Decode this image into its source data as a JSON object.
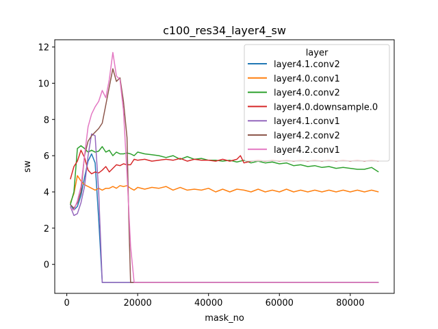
{
  "chart_data": {
    "type": "line",
    "title": "c100_res34_layer4_sw",
    "xlabel": "mask_no",
    "ylabel": "sw",
    "xlim": [
      -3400,
      92400
    ],
    "ylim": [
      -1.6,
      12.4
    ],
    "xticks": [
      0,
      20000,
      40000,
      60000,
      80000
    ],
    "xtick_labels": [
      "0",
      "20000",
      "40000",
      "60000",
      "80000"
    ],
    "yticks": [
      0,
      2,
      4,
      6,
      8,
      10,
      12
    ],
    "ytick_labels": [
      "0",
      "2",
      "4",
      "6",
      "8",
      "10",
      "12"
    ],
    "grid": false,
    "legend": {
      "title": "layer",
      "placement": "upper right"
    },
    "series": [
      {
        "name": "layer4.1.conv2",
        "color": "#1f77b4",
        "points": [
          [
            1000,
            3.3
          ],
          [
            2000,
            3.0
          ],
          [
            3000,
            3.2
          ],
          [
            4000,
            3.8
          ],
          [
            5000,
            4.8
          ],
          [
            6000,
            5.7
          ],
          [
            7000,
            6.1
          ],
          [
            8000,
            5.6
          ],
          [
            9000,
            2.5
          ],
          [
            10000,
            -1.0
          ],
          [
            88000,
            -1.0
          ]
        ]
      },
      {
        "name": "layer4.0.conv1",
        "color": "#ff7f0e",
        "points": [
          [
            1000,
            3.4
          ],
          [
            2000,
            3.9
          ],
          [
            3000,
            4.9
          ],
          [
            4000,
            4.6
          ],
          [
            5000,
            4.4
          ],
          [
            6000,
            4.3
          ],
          [
            7000,
            4.2
          ],
          [
            8000,
            4.1
          ],
          [
            9000,
            4.2
          ],
          [
            10000,
            4.1
          ],
          [
            11000,
            4.2
          ],
          [
            12000,
            4.2
          ],
          [
            13000,
            4.3
          ],
          [
            14000,
            4.2
          ],
          [
            15000,
            4.35
          ],
          [
            16000,
            4.3
          ],
          [
            17000,
            4.35
          ],
          [
            18000,
            4.2
          ],
          [
            19000,
            4.1
          ],
          [
            20000,
            4.25
          ],
          [
            22000,
            4.15
          ],
          [
            24000,
            4.25
          ],
          [
            26000,
            4.2
          ],
          [
            28000,
            4.3
          ],
          [
            30000,
            4.1
          ],
          [
            32000,
            4.25
          ],
          [
            34000,
            4.1
          ],
          [
            36000,
            4.15
          ],
          [
            38000,
            4.1
          ],
          [
            40000,
            4.2
          ],
          [
            42000,
            4.0
          ],
          [
            44000,
            4.15
          ],
          [
            46000,
            4.0
          ],
          [
            48000,
            4.15
          ],
          [
            50000,
            4.1
          ],
          [
            52000,
            4.0
          ],
          [
            54000,
            4.15
          ],
          [
            56000,
            4.0
          ],
          [
            58000,
            4.1
          ],
          [
            60000,
            4.0
          ],
          [
            62000,
            4.15
          ],
          [
            64000,
            4.0
          ],
          [
            66000,
            4.1
          ],
          [
            68000,
            4.0
          ],
          [
            70000,
            4.1
          ],
          [
            72000,
            4.0
          ],
          [
            74000,
            4.1
          ],
          [
            76000,
            4.0
          ],
          [
            78000,
            4.1
          ],
          [
            80000,
            4.0
          ],
          [
            82000,
            4.1
          ],
          [
            84000,
            4.0
          ],
          [
            86000,
            4.1
          ],
          [
            88000,
            4.0
          ]
        ]
      },
      {
        "name": "layer4.0.conv2",
        "color": "#2ca02c",
        "points": [
          [
            1000,
            3.3
          ],
          [
            2000,
            4.0
          ],
          [
            3000,
            6.4
          ],
          [
            4000,
            6.55
          ],
          [
            5000,
            6.4
          ],
          [
            6000,
            6.2
          ],
          [
            7000,
            6.3
          ],
          [
            8000,
            6.2
          ],
          [
            9000,
            6.25
          ],
          [
            10000,
            6.5
          ],
          [
            11000,
            6.2
          ],
          [
            12000,
            6.3
          ],
          [
            13000,
            6.0
          ],
          [
            14000,
            6.2
          ],
          [
            15000,
            6.1
          ],
          [
            16000,
            6.1
          ],
          [
            17000,
            6.15
          ],
          [
            18000,
            6.1
          ],
          [
            19000,
            6.0
          ],
          [
            20000,
            6.2
          ],
          [
            22000,
            6.1
          ],
          [
            24000,
            6.05
          ],
          [
            26000,
            6.0
          ],
          [
            28000,
            5.9
          ],
          [
            30000,
            6.0
          ],
          [
            32000,
            5.8
          ],
          [
            34000,
            5.95
          ],
          [
            36000,
            5.8
          ],
          [
            38000,
            5.85
          ],
          [
            40000,
            5.75
          ],
          [
            42000,
            5.75
          ],
          [
            44000,
            5.7
          ],
          [
            46000,
            5.75
          ],
          [
            48000,
            5.65
          ],
          [
            50000,
            5.75
          ],
          [
            52000,
            5.6
          ],
          [
            54000,
            5.7
          ],
          [
            56000,
            5.6
          ],
          [
            58000,
            5.65
          ],
          [
            60000,
            5.55
          ],
          [
            62000,
            5.6
          ],
          [
            64000,
            5.45
          ],
          [
            66000,
            5.5
          ],
          [
            68000,
            5.4
          ],
          [
            70000,
            5.45
          ],
          [
            72000,
            5.35
          ],
          [
            74000,
            5.4
          ],
          [
            76000,
            5.3
          ],
          [
            78000,
            5.35
          ],
          [
            80000,
            5.3
          ],
          [
            82000,
            5.25
          ],
          [
            84000,
            5.25
          ],
          [
            86000,
            5.35
          ],
          [
            88000,
            5.1
          ]
        ]
      },
      {
        "name": "layer4.0.downsample.0",
        "color": "#d62728",
        "points": [
          [
            1000,
            4.7
          ],
          [
            2000,
            5.4
          ],
          [
            3000,
            5.7
          ],
          [
            4000,
            6.3
          ],
          [
            5000,
            5.9
          ],
          [
            6000,
            5.2
          ],
          [
            7000,
            5.0
          ],
          [
            8000,
            5.1
          ],
          [
            9000,
            5.05
          ],
          [
            10000,
            5.2
          ],
          [
            11000,
            5.4
          ],
          [
            12000,
            5.1
          ],
          [
            13000,
            5.3
          ],
          [
            14000,
            5.5
          ],
          [
            15000,
            5.45
          ],
          [
            16000,
            5.55
          ],
          [
            17000,
            5.5
          ],
          [
            18000,
            5.5
          ],
          [
            19000,
            5.8
          ],
          [
            20000,
            5.75
          ],
          [
            22000,
            5.8
          ],
          [
            24000,
            5.7
          ],
          [
            26000,
            5.75
          ],
          [
            28000,
            5.8
          ],
          [
            30000,
            5.75
          ],
          [
            32000,
            5.85
          ],
          [
            34000,
            5.7
          ],
          [
            36000,
            5.8
          ],
          [
            38000,
            5.75
          ],
          [
            40000,
            5.75
          ],
          [
            42000,
            5.7
          ],
          [
            44000,
            5.8
          ],
          [
            46000,
            5.7
          ],
          [
            48000,
            5.8
          ],
          [
            49000,
            6.0
          ],
          [
            50000,
            5.6
          ],
          [
            52000,
            5.7
          ],
          [
            54000,
            5.75
          ],
          [
            56000,
            5.7
          ],
          [
            58000,
            5.75
          ],
          [
            60000,
            5.7
          ],
          [
            62000,
            5.75
          ],
          [
            64000,
            5.7
          ],
          [
            66000,
            5.75
          ],
          [
            68000,
            5.7
          ],
          [
            70000,
            5.75
          ],
          [
            72000,
            5.7
          ],
          [
            74000,
            5.75
          ],
          [
            76000,
            5.7
          ],
          [
            78000,
            5.75
          ],
          [
            80000,
            5.7
          ],
          [
            82000,
            5.75
          ],
          [
            84000,
            5.7
          ],
          [
            86000,
            5.75
          ],
          [
            88000,
            5.7
          ]
        ]
      },
      {
        "name": "layer4.1.conv1",
        "color": "#9467bd",
        "points": [
          [
            1000,
            3.2
          ],
          [
            2000,
            2.7
          ],
          [
            3000,
            2.8
          ],
          [
            4000,
            3.4
          ],
          [
            5000,
            4.3
          ],
          [
            6000,
            6.0
          ],
          [
            7000,
            7.2
          ],
          [
            8000,
            7.1
          ],
          [
            9000,
            4.0
          ],
          [
            10000,
            -1.0
          ],
          [
            88000,
            -1.0
          ]
        ]
      },
      {
        "name": "layer4.2.conv2",
        "color": "#8c564b",
        "points": [
          [
            1000,
            3.3
          ],
          [
            2000,
            3.1
          ],
          [
            3000,
            3.4
          ],
          [
            4000,
            4.0
          ],
          [
            5000,
            6.0
          ],
          [
            6000,
            6.8
          ],
          [
            7000,
            7.1
          ],
          [
            8000,
            7.3
          ],
          [
            9000,
            7.5
          ],
          [
            10000,
            7.8
          ],
          [
            11000,
            8.8
          ],
          [
            12000,
            9.8
          ],
          [
            13000,
            10.8
          ],
          [
            14000,
            10.1
          ],
          [
            15000,
            10.3
          ],
          [
            16000,
            9.0
          ],
          [
            17000,
            7.0
          ],
          [
            17500,
            2.5
          ],
          [
            18000,
            -1.0
          ],
          [
            88000,
            -1.0
          ]
        ]
      },
      {
        "name": "layer4.2.conv1",
        "color": "#e377c2",
        "points": [
          [
            1000,
            3.1
          ],
          [
            2000,
            3.0
          ],
          [
            3000,
            3.5
          ],
          [
            4000,
            4.3
          ],
          [
            5000,
            6.0
          ],
          [
            6000,
            7.6
          ],
          [
            7000,
            8.3
          ],
          [
            8000,
            8.7
          ],
          [
            9000,
            9.0
          ],
          [
            10000,
            9.6
          ],
          [
            11000,
            9.2
          ],
          [
            12000,
            10.2
          ],
          [
            13000,
            11.7
          ],
          [
            14000,
            10.4
          ],
          [
            15000,
            10.2
          ],
          [
            16000,
            8.5
          ],
          [
            17000,
            5.0
          ],
          [
            18000,
            1.0
          ],
          [
            19000,
            -1.0
          ],
          [
            88000,
            -1.0
          ]
        ]
      }
    ]
  }
}
